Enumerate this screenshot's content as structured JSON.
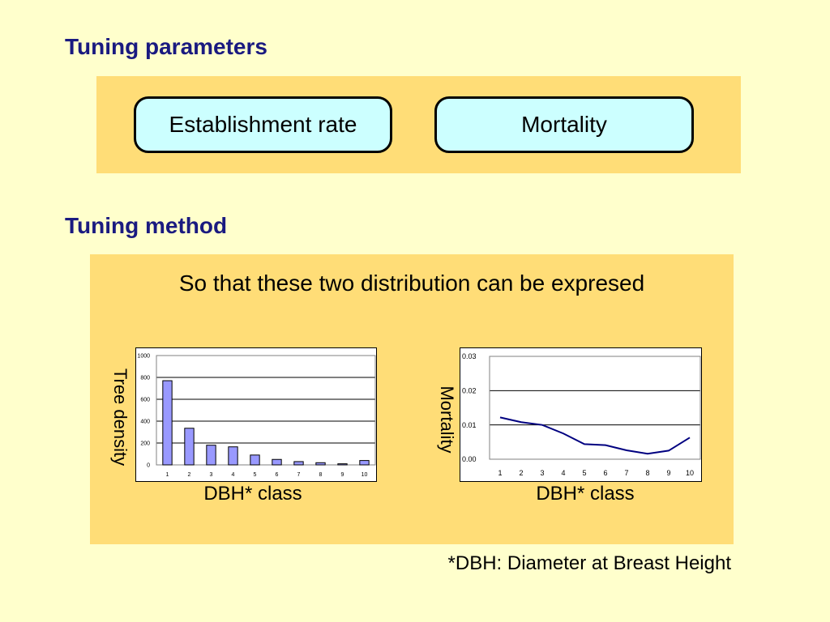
{
  "headings": {
    "params": "Tuning parameters",
    "method": "Tuning method"
  },
  "params": {
    "left": "Establishment rate",
    "right": "Mortality"
  },
  "method_text": "So that these two distribution can be expresed",
  "footnote": "*DBH: Diameter at Breast Height",
  "colors": {
    "background": "#ffffcc",
    "panel": "#ffdd77",
    "heading": "#1a1a80",
    "pill": "#ccffff",
    "bar_fill": "#9999ff",
    "line": "#000080"
  },
  "chart_data": [
    {
      "type": "bar",
      "xlabel": "DBH* class",
      "ylabel": "Tree density",
      "categories": [
        "1",
        "2",
        "3",
        "4",
        "5",
        "6",
        "7",
        "8",
        "9",
        "10"
      ],
      "values": [
        770,
        335,
        180,
        165,
        90,
        50,
        30,
        20,
        10,
        40
      ],
      "yticks": [
        "0",
        "200",
        "400",
        "600",
        "800",
        "1000"
      ],
      "ylim": [
        0,
        1000
      ],
      "grid": true
    },
    {
      "type": "line",
      "xlabel": "DBH* class",
      "ylabel": "Mortality",
      "categories": [
        "1",
        "2",
        "3",
        "4",
        "5",
        "6",
        "7",
        "8",
        "9",
        "10"
      ],
      "values": [
        0.0122,
        0.0108,
        0.01,
        0.0075,
        0.0044,
        0.0041,
        0.0026,
        0.0016,
        0.0025,
        0.0063
      ],
      "yticks": [
        "0.00",
        "0.01",
        "0.02",
        "0.03"
      ],
      "ylim": [
        0,
        0.03
      ],
      "grid": true
    }
  ]
}
